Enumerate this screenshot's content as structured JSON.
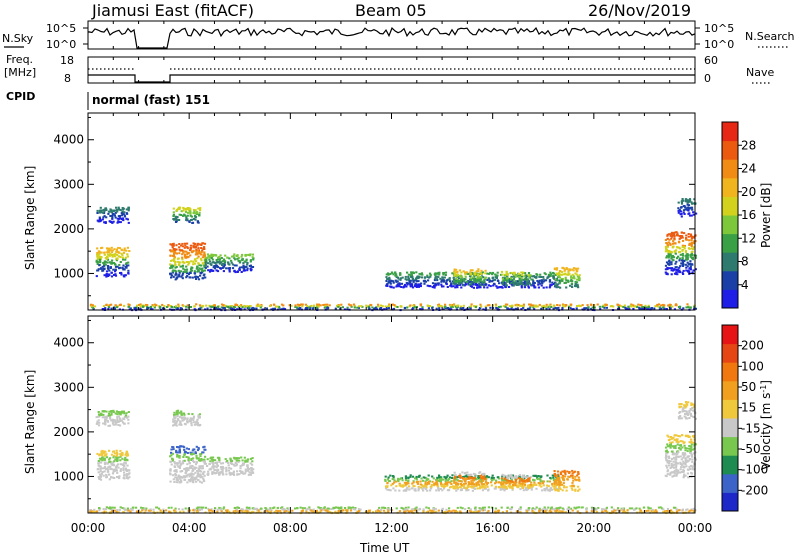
{
  "header": {
    "station": "Jiamusi East (fitACF)",
    "beam": "Beam 05",
    "date": "26/Nov/2019"
  },
  "noise_panel": {
    "left_label": "N.Sky",
    "left_ticks": [
      "10^5",
      "10^0"
    ],
    "right_label": "N.Search",
    "right_ticks": [
      "10^5",
      "10^0"
    ],
    "right_line_style": "dotted"
  },
  "freq_panel": {
    "left_label_1": "Freq.",
    "left_label_2": "[MHz]",
    "left_ticks": [
      "18",
      "8"
    ],
    "right_label": "Nave",
    "right_ticks": [
      "60",
      "0"
    ],
    "right_line_style": "dotted"
  },
  "cpid": {
    "label": "CPID",
    "text": "normal (fast) 151"
  },
  "chart_data": [
    {
      "type": "heatmap",
      "name": "Power",
      "ylabel": "Slant Range [km]",
      "yticks": [
        1000,
        2000,
        3000,
        4000
      ],
      "ylim": [
        180,
        4600
      ],
      "xlim": [
        0,
        24
      ],
      "colorbar": {
        "label": "Power [dB]",
        "ticks": [
          "4",
          "8",
          "12",
          "16",
          "20",
          "24",
          "28"
        ],
        "colors": [
          "#1e1ee6",
          "#1a40a8",
          "#2f7a6e",
          "#3aa046",
          "#7dc83a",
          "#d2d21e",
          "#f0b41e",
          "#f08c14",
          "#eb5a0f",
          "#e62814"
        ]
      },
      "regions": [
        {
          "t0": 0.3,
          "t1": 1.6,
          "r0": 950,
          "r1": 1600,
          "c": [
            0,
            1,
            3,
            5,
            6
          ]
        },
        {
          "t0": 0.3,
          "t1": 1.6,
          "r0": 2150,
          "r1": 2500,
          "c": [
            0,
            1,
            2
          ]
        },
        {
          "t0": 3.2,
          "t1": 4.6,
          "r0": 880,
          "r1": 1700,
          "c": [
            1,
            3,
            5,
            7,
            8
          ]
        },
        {
          "t0": 3.3,
          "t1": 4.4,
          "r0": 2150,
          "r1": 2500,
          "c": [
            1,
            2,
            3,
            4,
            5
          ]
        },
        {
          "t0": 4.6,
          "t1": 6.5,
          "r0": 1050,
          "r1": 1450,
          "c": [
            0,
            1,
            2,
            3,
            4
          ]
        },
        {
          "t0": 11.7,
          "t1": 18.6,
          "r0": 700,
          "r1": 1050,
          "c": [
            0,
            1,
            2,
            3
          ]
        },
        {
          "t0": 14.4,
          "t1": 15.7,
          "r0": 750,
          "r1": 1120,
          "c": [
            2,
            3,
            4,
            5,
            6
          ]
        },
        {
          "t0": 16.3,
          "t1": 17.5,
          "r0": 750,
          "r1": 1060,
          "c": [
            2,
            3,
            4,
            5
          ]
        },
        {
          "t0": 18.4,
          "t1": 19.4,
          "r0": 700,
          "r1": 1150,
          "c": [
            2,
            3,
            4,
            5,
            6
          ]
        },
        {
          "t0": 22.8,
          "t1": 24.0,
          "r0": 1000,
          "r1": 1950,
          "c": [
            0,
            1,
            3,
            5,
            7,
            8
          ]
        },
        {
          "t0": 23.3,
          "t1": 24.0,
          "r0": 2300,
          "r1": 2700,
          "c": [
            0,
            1,
            2
          ]
        },
        {
          "t0": 0.0,
          "t1": 24.0,
          "r0": 200,
          "r1": 330,
          "c": [
            0,
            1,
            3,
            5,
            7
          ]
        }
      ]
    },
    {
      "type": "heatmap",
      "name": "Velocity",
      "ylabel": "Slant Range [km]",
      "yticks": [
        1000,
        2000,
        3000,
        4000
      ],
      "ylim": [
        180,
        4600
      ],
      "xlim": [
        0,
        24
      ],
      "xticks": [
        "00:00",
        "04:00",
        "08:00",
        "12:00",
        "16:00",
        "20:00",
        "00:00"
      ],
      "xlabel": "Time UT",
      "colorbar": {
        "label": "Velocity [m s^-1]",
        "ticks": [
          "200",
          "100",
          "50",
          "15",
          "-15",
          "-50",
          "-100",
          "-200"
        ],
        "colors": [
          "#1e28c8",
          "#3c64c8",
          "#1e8c50",
          "#78c850",
          "#c8c8c8",
          "#f0c83c",
          "#f0a01e",
          "#f0780f",
          "#e64614",
          "#e61414"
        ]
      },
      "regions": [
        {
          "t0": 0.3,
          "t1": 1.6,
          "r0": 950,
          "r1": 1600,
          "c": [
            4,
            4,
            4,
            3,
            5
          ]
        },
        {
          "t0": 0.3,
          "t1": 1.6,
          "r0": 2150,
          "r1": 2500,
          "c": [
            4,
            4,
            3
          ]
        },
        {
          "t0": 3.2,
          "t1": 4.6,
          "r0": 880,
          "r1": 1700,
          "c": [
            4,
            4,
            4,
            3,
            1
          ]
        },
        {
          "t0": 3.3,
          "t1": 4.4,
          "r0": 2150,
          "r1": 2500,
          "c": [
            4,
            4,
            3
          ]
        },
        {
          "t0": 4.6,
          "t1": 6.5,
          "r0": 1050,
          "r1": 1450,
          "c": [
            4,
            4,
            4,
            3
          ]
        },
        {
          "t0": 11.7,
          "t1": 18.6,
          "r0": 700,
          "r1": 1050,
          "c": [
            4,
            5,
            6,
            3,
            2
          ]
        },
        {
          "t0": 14.4,
          "t1": 15.7,
          "r0": 750,
          "r1": 1120,
          "c": [
            5,
            6,
            6,
            7,
            4
          ]
        },
        {
          "t0": 16.3,
          "t1": 17.5,
          "r0": 750,
          "r1": 1060,
          "c": [
            5,
            6,
            7,
            4
          ]
        },
        {
          "t0": 18.4,
          "t1": 19.4,
          "r0": 700,
          "r1": 1150,
          "c": [
            5,
            6,
            6,
            7
          ]
        },
        {
          "t0": 22.8,
          "t1": 24.0,
          "r0": 1000,
          "r1": 1950,
          "c": [
            4,
            4,
            4,
            3,
            5
          ]
        },
        {
          "t0": 23.3,
          "t1": 24.0,
          "r0": 2300,
          "r1": 2700,
          "c": [
            4,
            4,
            5
          ]
        },
        {
          "t0": 0.0,
          "t1": 24.0,
          "r0": 200,
          "r1": 330,
          "c": [
            5,
            6,
            4,
            3
          ]
        }
      ]
    }
  ]
}
